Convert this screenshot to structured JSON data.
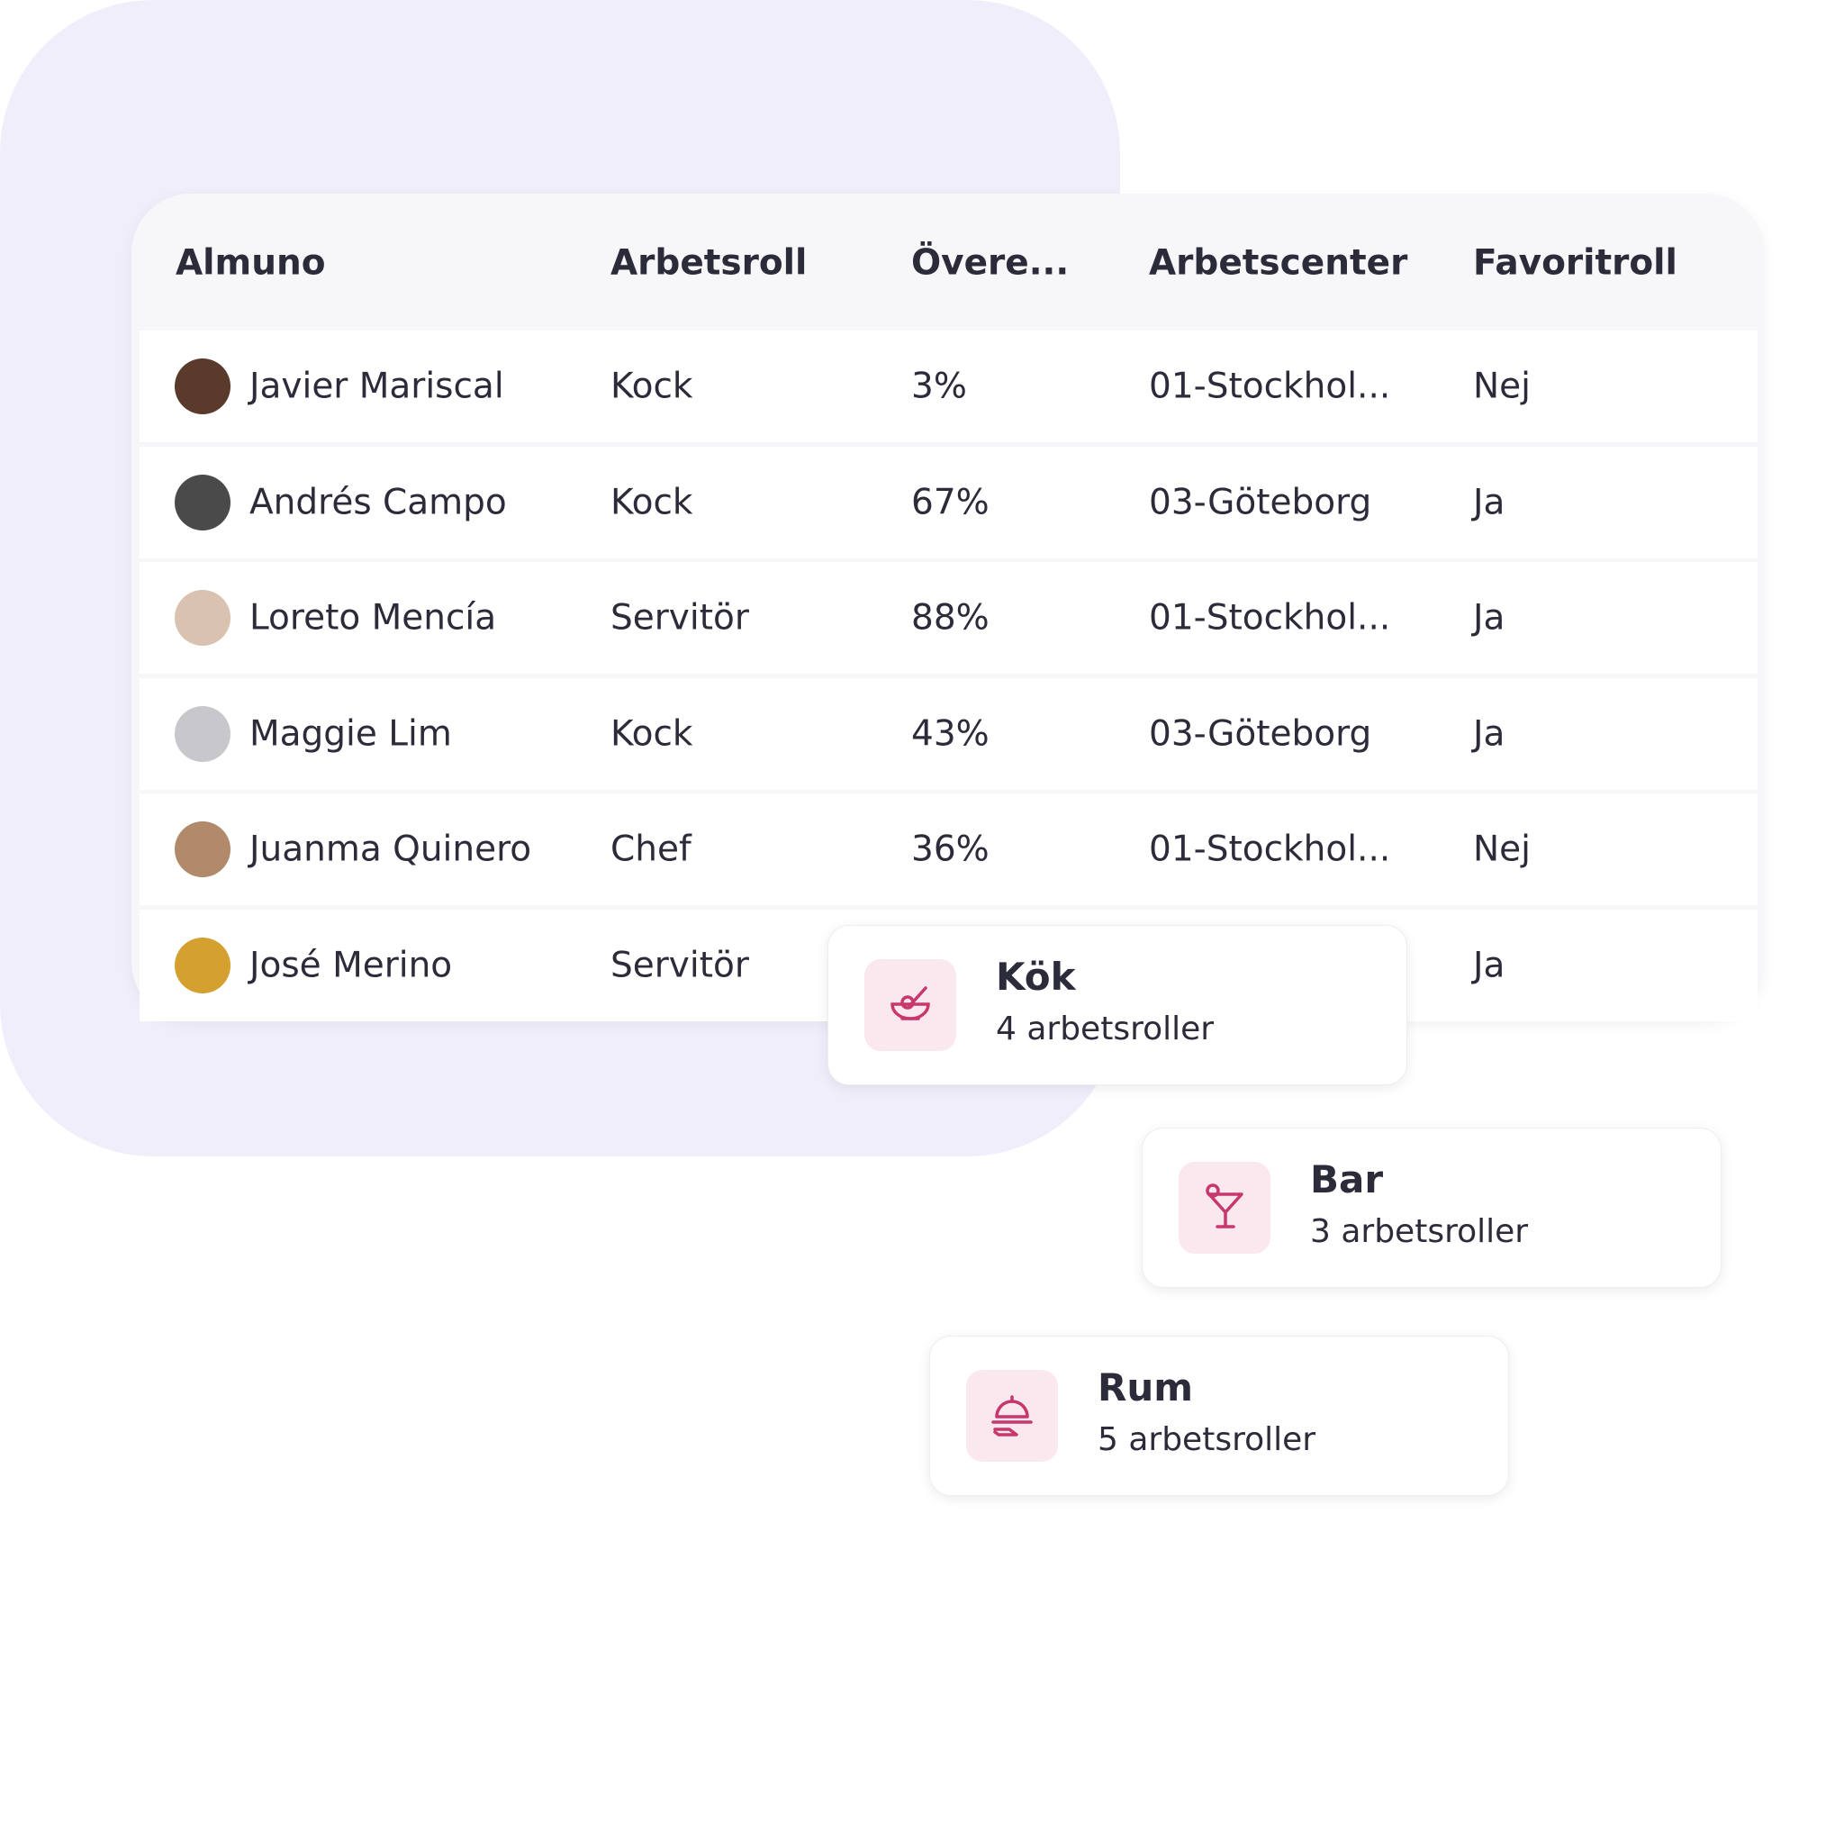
{
  "table": {
    "headers": [
      "Almuno",
      "Arbetsroll",
      "Övere...",
      "Arbetscenter",
      "Favoritroll"
    ],
    "rows": [
      {
        "name": "Javier Mariscal",
        "role": "Kock",
        "match": "3%",
        "center": "01-Stockhol...",
        "favorite": "Nej"
      },
      {
        "name": "Andrés Campo",
        "role": "Kock",
        "match": "67%",
        "center": "03-Göteborg",
        "favorite": "Ja"
      },
      {
        "name": "Loreto Mencía",
        "role": "Servitör",
        "match": "88%",
        "center": "01-Stockhol...",
        "favorite": "Ja"
      },
      {
        "name": "Maggie Lim",
        "role": "Kock",
        "match": "43%",
        "center": "03-Göteborg",
        "favorite": "Ja"
      },
      {
        "name": "Juanma Quinero",
        "role": "Chef",
        "match": "36%",
        "center": "01-Stockhol...",
        "favorite": "Nej"
      },
      {
        "name": "José Merino",
        "role": "Servitör",
        "favorite": "Ja"
      }
    ]
  },
  "cards": [
    {
      "title": "Kök",
      "subtitle": "4 arbetsroller"
    },
    {
      "title": "Bar",
      "subtitle": "3 arbetsroller"
    },
    {
      "title": "Rum",
      "subtitle": "5 arbetsroller"
    }
  ]
}
